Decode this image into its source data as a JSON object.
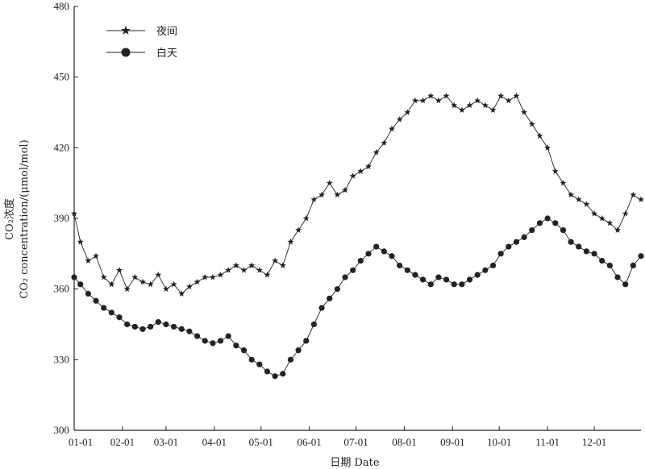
{
  "chart_data": {
    "type": "line",
    "xlabel": "日期 Date",
    "ylabel_line1": "CO₂浓度",
    "ylabel_line2": "CO₂ concentration/(μmol/mol)",
    "ylim": [
      300,
      480
    ],
    "yticks": [
      300,
      330,
      360,
      390,
      420,
      450,
      480
    ],
    "xticks": [
      "01-01",
      "02-01",
      "03-01",
      "04-01",
      "05-01",
      "06-01",
      "07-01",
      "08-01",
      "09-01",
      "10-01",
      "11-01",
      "12-01"
    ],
    "x_unit": "day of year (1–365)",
    "grid": false,
    "legend_position": "top-left",
    "series": [
      {
        "name": "夜间",
        "marker": "star",
        "color": "#222222",
        "x": [
          1,
          5,
          10,
          15,
          20,
          25,
          30,
          35,
          40,
          45,
          50,
          55,
          60,
          65,
          70,
          75,
          80,
          85,
          90,
          95,
          100,
          105,
          110,
          115,
          120,
          125,
          130,
          135,
          140,
          145,
          150,
          155,
          160,
          165,
          170,
          175,
          180,
          185,
          190,
          195,
          200,
          205,
          210,
          215,
          220,
          225,
          230,
          235,
          240,
          245,
          250,
          255,
          260,
          265,
          270,
          275,
          280,
          285,
          290,
          295,
          300,
          305,
          310,
          315,
          320,
          325,
          330,
          335,
          340,
          345,
          350,
          355,
          360,
          365
        ],
        "y": [
          392,
          380,
          372,
          374,
          365,
          362,
          368,
          360,
          365,
          363,
          362,
          366,
          360,
          362,
          358,
          361,
          363,
          365,
          365,
          366,
          368,
          370,
          368,
          370,
          368,
          366,
          372,
          370,
          380,
          385,
          390,
          398,
          400,
          405,
          400,
          402,
          408,
          410,
          412,
          418,
          422,
          428,
          432,
          435,
          440,
          440,
          442,
          440,
          442,
          438,
          436,
          438,
          440,
          438,
          436,
          442,
          440,
          442,
          435,
          430,
          425,
          420,
          410,
          405,
          400,
          398,
          396,
          392,
          390,
          388,
          385,
          392,
          400,
          398
        ]
      },
      {
        "name": "白天",
        "marker": "circle",
        "color": "#222222",
        "x": [
          1,
          5,
          10,
          15,
          20,
          25,
          30,
          35,
          40,
          45,
          50,
          55,
          60,
          65,
          70,
          75,
          80,
          85,
          90,
          95,
          100,
          105,
          110,
          115,
          120,
          125,
          130,
          135,
          140,
          145,
          150,
          155,
          160,
          165,
          170,
          175,
          180,
          185,
          190,
          195,
          200,
          205,
          210,
          215,
          220,
          225,
          230,
          235,
          240,
          245,
          250,
          255,
          260,
          265,
          270,
          275,
          280,
          285,
          290,
          295,
          300,
          305,
          310,
          315,
          320,
          325,
          330,
          335,
          340,
          345,
          350,
          355,
          360,
          365
        ],
        "y": [
          365,
          362,
          358,
          355,
          352,
          350,
          348,
          345,
          344,
          343,
          344,
          346,
          345,
          344,
          343,
          342,
          340,
          338,
          337,
          338,
          340,
          336,
          334,
          330,
          328,
          325,
          323,
          324,
          330,
          334,
          338,
          345,
          352,
          356,
          360,
          365,
          368,
          372,
          375,
          378,
          376,
          374,
          370,
          368,
          366,
          364,
          362,
          365,
          364,
          362,
          362,
          364,
          366,
          368,
          370,
          375,
          378,
          380,
          382,
          385,
          388,
          390,
          388,
          385,
          380,
          378,
          376,
          375,
          372,
          370,
          365,
          362,
          370,
          374
        ]
      }
    ]
  }
}
